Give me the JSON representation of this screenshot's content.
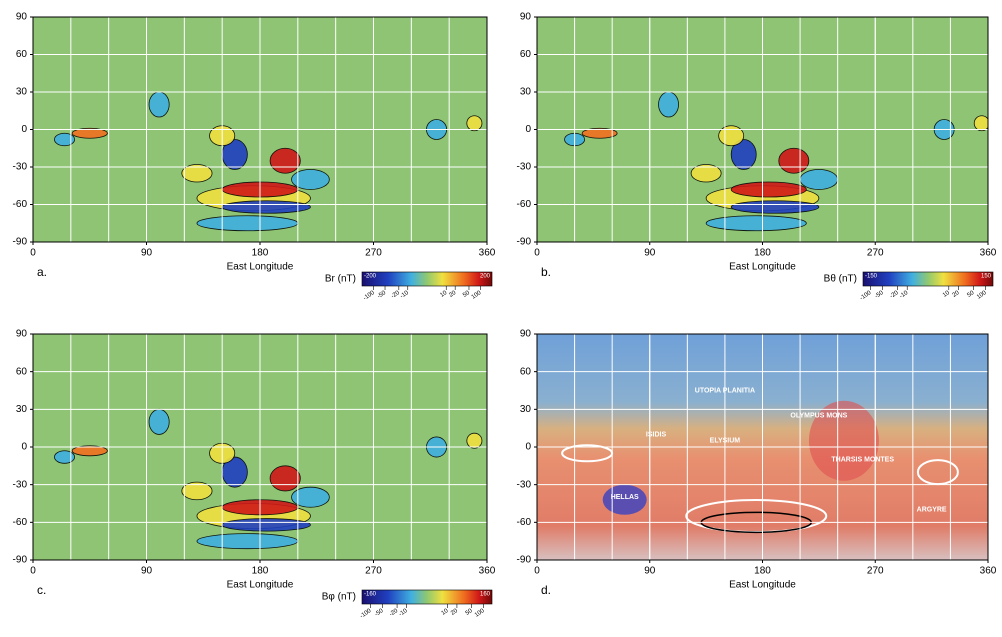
{
  "chart_data": [
    {
      "type": "map",
      "panel_label": "a.",
      "xlabel": "East Longitude",
      "xlim": [
        0,
        360
      ],
      "xticks": [
        0,
        90,
        180,
        270,
        360
      ],
      "ylim": [
        -90,
        90
      ],
      "yticks": [
        -90,
        -60,
        -30,
        0,
        30,
        60,
        90
      ],
      "grid": true,
      "colorbar": {
        "label": "Br (nT)",
        "lim": [
          -200,
          200
        ],
        "ticks": [
          -100,
          -50,
          -20,
          -10,
          10,
          20,
          50,
          100
        ]
      }
    },
    {
      "type": "map",
      "panel_label": "b.",
      "xlabel": "East Longitude",
      "xlim": [
        0,
        360
      ],
      "xticks": [
        0,
        90,
        180,
        270,
        360
      ],
      "ylim": [
        -90,
        90
      ],
      "yticks": [
        -90,
        -60,
        -30,
        0,
        30,
        60,
        90
      ],
      "grid": true,
      "colorbar": {
        "label": "Bθ (nT)",
        "lim": [
          -150,
          150
        ],
        "ticks": [
          -100,
          -50,
          -20,
          -10,
          10,
          20,
          50,
          100
        ]
      }
    },
    {
      "type": "map",
      "panel_label": "c.",
      "xlabel": "East Longitude",
      "xlim": [
        0,
        360
      ],
      "xticks": [
        0,
        90,
        180,
        270,
        360
      ],
      "ylim": [
        -90,
        90
      ],
      "yticks": [
        -90,
        -60,
        -30,
        0,
        30,
        60,
        90
      ],
      "grid": true,
      "colorbar": {
        "label": "Bφ (nT)",
        "lim": [
          -160,
          160
        ],
        "ticks": [
          -100,
          -50,
          -20,
          -10,
          10,
          20,
          50,
          100
        ]
      }
    },
    {
      "type": "topo",
      "panel_label": "d.",
      "xlabel": "East Longitude",
      "xlim": [
        0,
        360
      ],
      "xticks": [
        0,
        90,
        180,
        270,
        360
      ],
      "ylim": [
        -90,
        90
      ],
      "yticks": [
        -90,
        -60,
        -30,
        0,
        30,
        60,
        90
      ],
      "grid": true,
      "annotations": [
        "UTOPIA PLANITIA",
        "OLYMPUS MONS",
        "ISIDIS",
        "ELYSIUM",
        "THARSIS MONTES",
        "HELLAS",
        "ARGYRE"
      ]
    }
  ]
}
